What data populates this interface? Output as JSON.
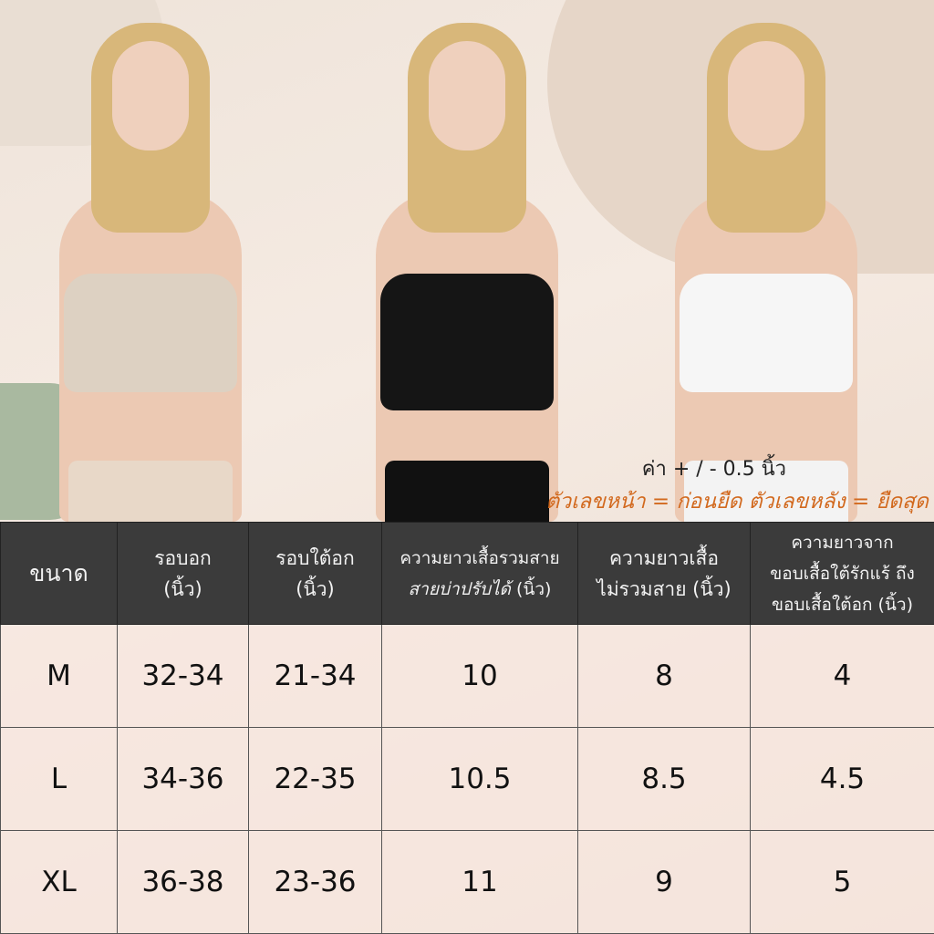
{
  "product_colors": [
    "#ddd1c2",
    "#151515",
    "#f6f6f6"
  ],
  "note": {
    "tolerance": "ค่า + / - 0.5 นิ้ว",
    "stretch_note": "ตัวเลขหน้า = ก่อนยืด ตัวเลขหลัง = ยืดสุด",
    "accent": "#d2691e"
  },
  "table": {
    "headers": [
      {
        "line1": "ขนาด",
        "line2": ""
      },
      {
        "line1": "รอบอก",
        "line2": "(นิ้ว)"
      },
      {
        "line1": "รอบใต้อก",
        "line2": "(นิ้ว)"
      },
      {
        "line1": "ความยาวเสื้อรวมสาย",
        "line2": "สายบ่าปรับได้",
        "line2b": "(นิ้ว)"
      },
      {
        "line1": "ความยาวเสื้อ",
        "line2": "ไม่รวมสาย (นิ้ว)"
      },
      {
        "line1": "ความยาวจาก",
        "line2": "ขอบเสื้อใต้รักแร้ ถึง",
        "line3": "ขอบเสื้อใต้อก (นิ้ว)"
      }
    ],
    "rows": [
      [
        "M",
        "32-34",
        "21-34",
        "10",
        "8",
        "4"
      ],
      [
        "L",
        "34-36",
        "22-35",
        "10.5",
        "8.5",
        "4.5"
      ],
      [
        "XL",
        "36-38",
        "23-36",
        "11",
        "9",
        "5"
      ]
    ]
  }
}
